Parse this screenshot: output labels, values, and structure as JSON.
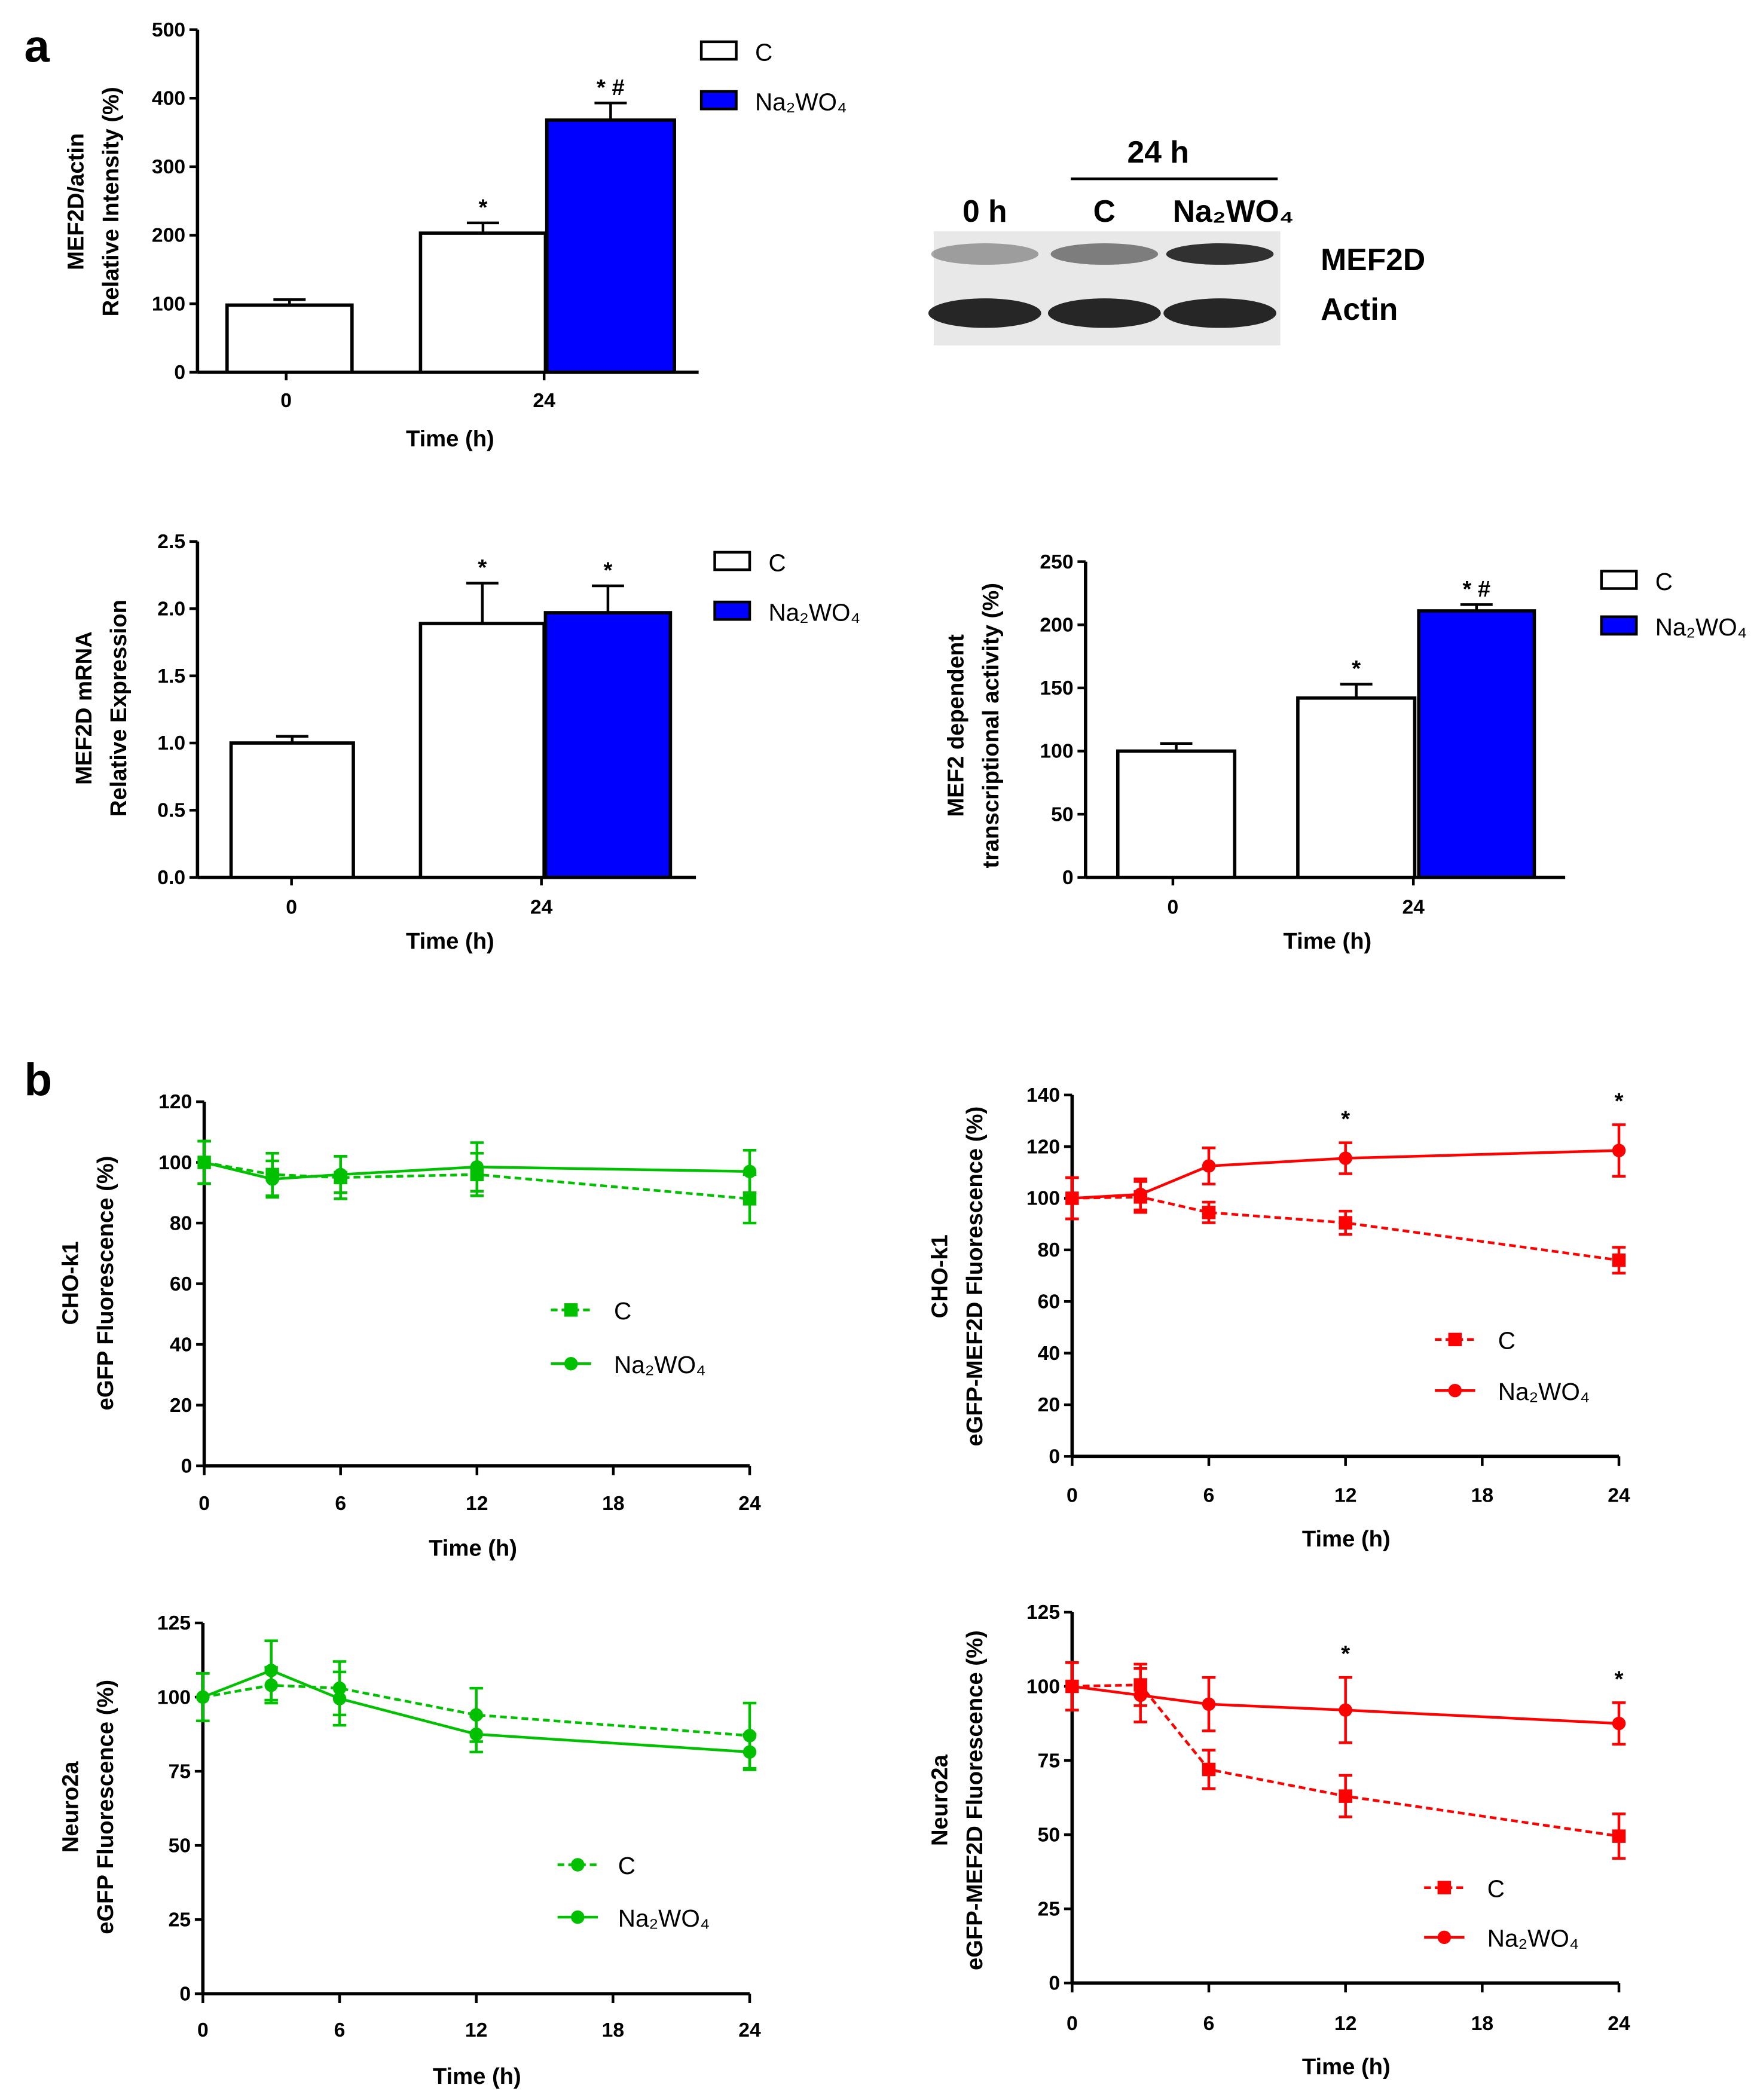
{
  "panel_labels": [
    "a",
    "b"
  ],
  "blot": {
    "header_24h": "24 h",
    "lanes": [
      "0 h",
      "C",
      "Na₂WO₄"
    ],
    "bands": [
      "MEF2D",
      "Actin"
    ],
    "mef2d_band_intensity": [
      0.35,
      0.5,
      0.85
    ],
    "actin_band_intensity": [
      0.9,
      0.9,
      0.9
    ]
  },
  "chart_data": [
    {
      "type": "bar",
      "id": "mef2d-protein",
      "ylabel": [
        "MEF2D/actin",
        "Relative Intensity (%)"
      ],
      "xlabel": "Time (h)",
      "ylim": [
        0,
        500
      ],
      "yticks": [
        0,
        100,
        200,
        300,
        400,
        500
      ],
      "categories": [
        "0",
        "24"
      ],
      "bars": [
        {
          "cat": "0",
          "series": "C",
          "value": 98,
          "err": 8,
          "mark": ""
        },
        {
          "cat": "24",
          "series": "C",
          "value": 203,
          "err": 15,
          "mark": "*"
        },
        {
          "cat": "24",
          "series": "Na₂WO₄",
          "value": 368,
          "err": 25,
          "mark": "* #"
        }
      ],
      "legend": [
        {
          "name": "C",
          "color": "#ffffff"
        },
        {
          "name": "Na₂WO₄",
          "color": "#0000ff"
        }
      ],
      "legend_position": "top-right"
    },
    {
      "type": "bar",
      "id": "mef2d-mrna",
      "ylabel": [
        "MEF2D mRNA",
        "Relative Expression"
      ],
      "xlabel": "Time (h)",
      "ylim": [
        0,
        2.5
      ],
      "yticks": [
        "0.0",
        "0.5",
        "1.0",
        "1.5",
        "2.0",
        "2.5"
      ],
      "categories": [
        "0",
        "24"
      ],
      "bars": [
        {
          "cat": "0",
          "series": "C",
          "value": 1.0,
          "err": 0.05,
          "mark": ""
        },
        {
          "cat": "24",
          "series": "C",
          "value": 1.89,
          "err": 0.3,
          "mark": "*"
        },
        {
          "cat": "24",
          "series": "Na₂WO₄",
          "value": 1.97,
          "err": 0.2,
          "mark": "*"
        }
      ],
      "legend": [
        {
          "name": "C",
          "color": "#ffffff"
        },
        {
          "name": "Na₂WO₄",
          "color": "#0000ff"
        }
      ],
      "legend_position": "top-right"
    },
    {
      "type": "bar",
      "id": "mef2-activity",
      "ylabel": [
        "MEF2 dependent",
        "transcriptional activity (%)"
      ],
      "xlabel": "Time (h)",
      "ylim": [
        0,
        250
      ],
      "yticks": [
        0,
        50,
        100,
        150,
        200,
        250
      ],
      "categories": [
        "0",
        "24"
      ],
      "bars": [
        {
          "cat": "0",
          "series": "C",
          "value": 100,
          "err": 6,
          "mark": ""
        },
        {
          "cat": "24",
          "series": "C",
          "value": 142,
          "err": 11,
          "mark": "*"
        },
        {
          "cat": "24",
          "series": "Na₂WO₄",
          "value": 211,
          "err": 5,
          "mark": "*  #"
        }
      ],
      "legend": [
        {
          "name": "C",
          "color": "#ffffff"
        },
        {
          "name": "Na₂WO₄",
          "color": "#0000ff"
        }
      ],
      "legend_position": "top-right"
    },
    {
      "type": "line",
      "id": "cho-egfp",
      "ylabel": [
        "CHO-k1",
        "eGFP Fluorescence (%)"
      ],
      "xlabel": "Time (h)",
      "xlim": [
        0,
        24
      ],
      "xticks": [
        0,
        6,
        12,
        18,
        24
      ],
      "ylim": [
        0,
        120
      ],
      "yticks": [
        0,
        20,
        40,
        60,
        80,
        100,
        120
      ],
      "color": "#00c000",
      "x": [
        0,
        3,
        6,
        12,
        24
      ],
      "series": [
        {
          "name": "C",
          "marker": "square",
          "dashed": true,
          "values": [
            100,
            96,
            95,
            96,
            88
          ],
          "err": [
            7,
            7,
            7,
            7,
            8
          ]
        },
        {
          "name": "Na₂WO₄",
          "marker": "circle",
          "dashed": false,
          "values": [
            100,
            94.5,
            96,
            98.5,
            97
          ],
          "err": [
            7,
            6,
            6,
            8,
            7
          ]
        }
      ],
      "significance": [],
      "legend_position": "center-right"
    },
    {
      "type": "line",
      "id": "cho-egfp-mef2d",
      "ylabel": [
        "CHO-k1",
        "eGFP-MEF2D Fluorescence (%)"
      ],
      "xlabel": "Time (h)",
      "xlim": [
        0,
        24
      ],
      "xticks": [
        0,
        6,
        12,
        18,
        24
      ],
      "ylim": [
        0,
        140
      ],
      "yticks": [
        0,
        20,
        40,
        60,
        80,
        100,
        120,
        140
      ],
      "color": "#ff0000",
      "x": [
        0,
        3,
        6,
        12,
        24
      ],
      "series": [
        {
          "name": "C",
          "marker": "square",
          "dashed": true,
          "values": [
            100,
            100.5,
            94.5,
            90.5,
            76
          ],
          "err": [
            8,
            6,
            4,
            4.5,
            5
          ]
        },
        {
          "name": "Na₂WO₄",
          "marker": "circle",
          "dashed": false,
          "values": [
            100,
            101.5,
            112.5,
            115.5,
            118.5
          ],
          "err": [
            8,
            6,
            7,
            6,
            10
          ]
        }
      ],
      "significance": [
        {
          "x": 12,
          "mark": "*"
        },
        {
          "x": 24,
          "mark": "*"
        }
      ],
      "legend_position": "bottom-right"
    },
    {
      "type": "line",
      "id": "neuro2a-egfp",
      "ylabel": [
        "Neuro2a",
        "eGFP Fluorescence (%)"
      ],
      "xlabel": "Time (h)",
      "xlim": [
        0,
        24
      ],
      "xticks": [
        0,
        6,
        12,
        18,
        24
      ],
      "ylim": [
        0,
        125
      ],
      "yticks": [
        0,
        25,
        50,
        75,
        100,
        125
      ],
      "color": "#00c000",
      "x": [
        0,
        3,
        6,
        12,
        24
      ],
      "series": [
        {
          "name": "C",
          "marker": "circle",
          "dashed": true,
          "values": [
            100,
            104,
            103,
            94,
            87
          ],
          "err": [
            8,
            6,
            9,
            9,
            11
          ]
        },
        {
          "name": "Na₂WO₄",
          "marker": "circle",
          "dashed": false,
          "values": [
            100,
            109,
            99.5,
            87.5,
            81.5
          ],
          "err": [
            8,
            10,
            9,
            6,
            6
          ]
        }
      ],
      "significance": [],
      "legend_position": "bottom-right"
    },
    {
      "type": "line",
      "id": "neuro2a-egfp-mef2d",
      "ylabel": [
        "Neuro2a",
        "eGFP-MEF2D Fluorescence (%)"
      ],
      "xlabel": "Time (h)",
      "xlim": [
        0,
        24
      ],
      "xticks": [
        0,
        6,
        12,
        18,
        24
      ],
      "ylim": [
        0,
        125
      ],
      "yticks": [
        0,
        25,
        50,
        75,
        100,
        125
      ],
      "color": "#ff0000",
      "x": [
        0,
        3,
        6,
        12,
        24
      ],
      "series": [
        {
          "name": "C",
          "marker": "square",
          "dashed": true,
          "values": [
            100,
            100.5,
            72,
            63,
            49.5
          ],
          "err": [
            8,
            7,
            6.5,
            7,
            7.5
          ]
        },
        {
          "name": "Na₂WO₄",
          "marker": "circle",
          "dashed": false,
          "values": [
            100,
            97,
            94,
            92,
            87.5
          ],
          "err": [
            8,
            9,
            9,
            11,
            7
          ]
        }
      ],
      "significance": [
        {
          "x": 12,
          "mark": "*"
        },
        {
          "x": 24,
          "mark": "*"
        }
      ],
      "legend_position": "bottom-right"
    }
  ]
}
